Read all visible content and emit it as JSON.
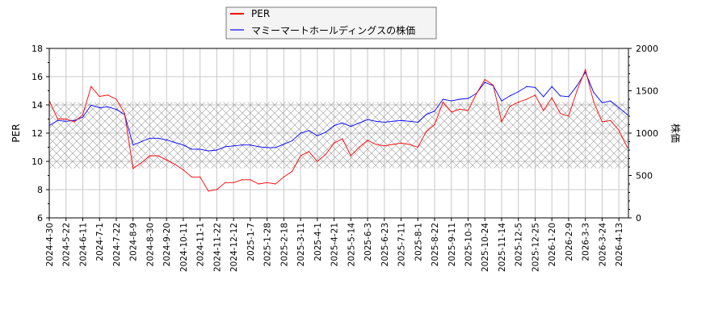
{
  "chart_data": {
    "type": "line",
    "title": "",
    "xlabel": "",
    "ylabel": "PER",
    "ylabel_right": "株価",
    "ylim": [
      6,
      18
    ],
    "ylim_right": [
      0,
      2000
    ],
    "yticks": [
      "6",
      "8",
      "10",
      "12",
      "14",
      "16",
      "18"
    ],
    "yticks_right": [
      "0",
      "500",
      "1000",
      "1500",
      "2000"
    ],
    "grid": true,
    "legend_placement": "top-center",
    "x_ticks": [
      "2024-4-30",
      "2024-5-22",
      "2024-6-11",
      "2024-7-1",
      "2024-7-22",
      "2024-8-9",
      "2024-8-30",
      "2024-9-20",
      "2024-10-11",
      "2024-11-1",
      "2024-11-22",
      "2024-12-12",
      "2025-1-7",
      "2025-1-28",
      "2025-2-18",
      "2025-3-11",
      "2025-4-1",
      "2025-4-21",
      "2025-5-14",
      "2025-6-3",
      "2025-6-23",
      "2025-7-11",
      "2025-8-1",
      "2025-8-22",
      "2025-9-11",
      "2025-10-3",
      "2025-10-24",
      "2025-11-14",
      "2025-12-5",
      "2025-12-25",
      "2026-1-20",
      "2026-2-9",
      "2026-3-3",
      "2026-3-24",
      "2026-4-13"
    ],
    "x_sampling": "every half tick interval starting at 2024-4-30",
    "shaded_band_per": [
      9.5,
      14.2
    ],
    "series": [
      {
        "name": "PER",
        "axis": "left",
        "color": "#ff0000",
        "values": [
          14.3,
          13.0,
          13.0,
          12.8,
          13.3,
          15.3,
          14.6,
          14.7,
          14.4,
          13.4,
          9.5,
          9.9,
          10.4,
          10.4,
          10.1,
          9.8,
          9.4,
          8.9,
          8.9,
          7.9,
          8.0,
          8.5,
          8.5,
          8.7,
          8.7,
          8.4,
          8.5,
          8.4,
          8.9,
          9.3,
          10.4,
          10.7,
          10.0,
          10.5,
          11.3,
          11.6,
          10.4,
          11.0,
          11.5,
          11.2,
          11.1,
          11.2,
          11.3,
          11.2,
          11.0,
          12.1,
          12.6,
          14.2,
          13.5,
          13.7,
          13.6,
          14.8,
          15.8,
          15.4,
          12.8,
          13.9,
          14.2,
          14.4,
          14.7,
          13.6,
          14.5,
          13.4,
          13.2,
          15.0,
          16.5,
          14.2,
          12.8,
          12.9,
          12.2,
          11.0
        ]
      },
      {
        "name": "マミーマートホールディングスの株価",
        "axis": "right",
        "color": "#0000ff",
        "values": [
          1090,
          1150,
          1140,
          1150,
          1190,
          1330,
          1300,
          1310,
          1280,
          1220,
          860,
          900,
          940,
          940,
          920,
          890,
          860,
          810,
          810,
          790,
          800,
          840,
          850,
          860,
          860,
          840,
          830,
          830,
          870,
          910,
          1000,
          1030,
          970,
          1010,
          1090,
          1120,
          1080,
          1120,
          1160,
          1140,
          1130,
          1140,
          1150,
          1140,
          1130,
          1220,
          1260,
          1400,
          1380,
          1400,
          1410,
          1470,
          1600,
          1560,
          1380,
          1440,
          1490,
          1550,
          1540,
          1430,
          1550,
          1440,
          1430,
          1560,
          1720,
          1480,
          1360,
          1380,
          1300,
          1220
        ]
      }
    ]
  }
}
